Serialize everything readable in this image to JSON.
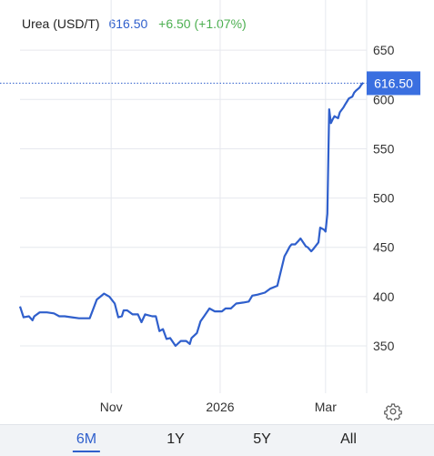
{
  "header": {
    "name": "Urea (USD/T)",
    "price": "616.50",
    "change": "+6.50 (+1.07%)"
  },
  "range_tabs": [
    "6M",
    "1Y",
    "5Y",
    "All"
  ],
  "active_tab": "6M",
  "last_price_tag": "616.50",
  "colors": {
    "line": "#2f5fcc",
    "price_tag": "#3a6fe0",
    "change_positive": "#4caf50",
    "grid": "#e6e8ee",
    "tab_bar": "#f1f3f6"
  },
  "icons": {
    "settings": "gear-icon"
  },
  "chart_data": {
    "type": "line",
    "title": "Urea (USD/T)",
    "xlabel": "",
    "ylabel": "",
    "x_ticks": [
      {
        "label": "Nov",
        "date": "2025-11-01"
      },
      {
        "label": "2026",
        "date": "2026-01-01"
      },
      {
        "label": "Mar",
        "date": "2026-03-01"
      }
    ],
    "y_ticks": [
      350,
      400,
      450,
      500,
      550,
      600,
      650
    ],
    "xlim": [
      "2025-09-11",
      "2026-03-24"
    ],
    "ylim": [
      302,
      664
    ],
    "y_axis_side": "right",
    "grid": true,
    "legend": "none",
    "series": [
      {
        "x": [
          "2025-09-11",
          "2025-09-13",
          "2025-09-16",
          "2025-09-18",
          "2025-09-19",
          "2025-09-22",
          "2025-09-24",
          "2025-09-26",
          "2025-09-30",
          "2025-10-03",
          "2025-10-06",
          "2025-10-10",
          "2025-10-14",
          "2025-10-20",
          "2025-10-24",
          "2025-10-26",
          "2025-10-28",
          "2025-10-31",
          "2025-11-03",
          "2025-11-05",
          "2025-11-07",
          "2025-11-08",
          "2025-11-10",
          "2025-11-13",
          "2025-11-16",
          "2025-11-18",
          "2025-11-20",
          "2025-11-24",
          "2025-11-26",
          "2025-11-28",
          "2025-11-30",
          "2025-12-02",
          "2025-12-04",
          "2025-12-07",
          "2025-12-10",
          "2025-12-13",
          "2025-12-15",
          "2025-12-16",
          "2025-12-19",
          "2025-12-21",
          "2025-12-23",
          "2025-12-26",
          "2025-12-29",
          "2026-01-02",
          "2026-01-04",
          "2026-01-07",
          "2026-01-10",
          "2026-01-14",
          "2026-01-17",
          "2026-01-19",
          "2026-01-22",
          "2026-01-26",
          "2026-01-29",
          "2026-02-02",
          "2026-02-06",
          "2026-02-07",
          "2026-02-09",
          "2026-02-10",
          "2026-02-12",
          "2026-02-14",
          "2026-02-15",
          "2026-02-18",
          "2026-02-19",
          "2026-02-21",
          "2026-02-22",
          "2026-02-25",
          "2026-02-26",
          "2026-02-28",
          "2026-03-01",
          "2026-03-02",
          "2026-03-03",
          "2026-03-04",
          "2026-03-05",
          "2026-03-06",
          "2026-03-08",
          "2026-03-09",
          "2026-03-11",
          "2026-03-12",
          "2026-03-13",
          "2026-03-14",
          "2026-03-16",
          "2026-03-17",
          "2026-03-18",
          "2026-03-20",
          "2026-03-21",
          "2026-03-22"
        ],
        "y": [
          390,
          379,
          380,
          376,
          380,
          384,
          384,
          384,
          383,
          380,
          380,
          379,
          378,
          378,
          397,
          400,
          403,
          400,
          393,
          379,
          380,
          386,
          386,
          382,
          382,
          374,
          382,
          380,
          380,
          365,
          367,
          357,
          358,
          350,
          355,
          355,
          352,
          358,
          363,
          375,
          380,
          388,
          385,
          385,
          388,
          388,
          393,
          394,
          395,
          401,
          402,
          404,
          408,
          411,
          441,
          444,
          451,
          453,
          453,
          457,
          459,
          451,
          450,
          446,
          448,
          455,
          470,
          468,
          466,
          484,
          590,
          576,
          580,
          583,
          581,
          587,
          592,
          595,
          598,
          601,
          603,
          607,
          609,
          612,
          615,
          617
        ]
      }
    ]
  }
}
